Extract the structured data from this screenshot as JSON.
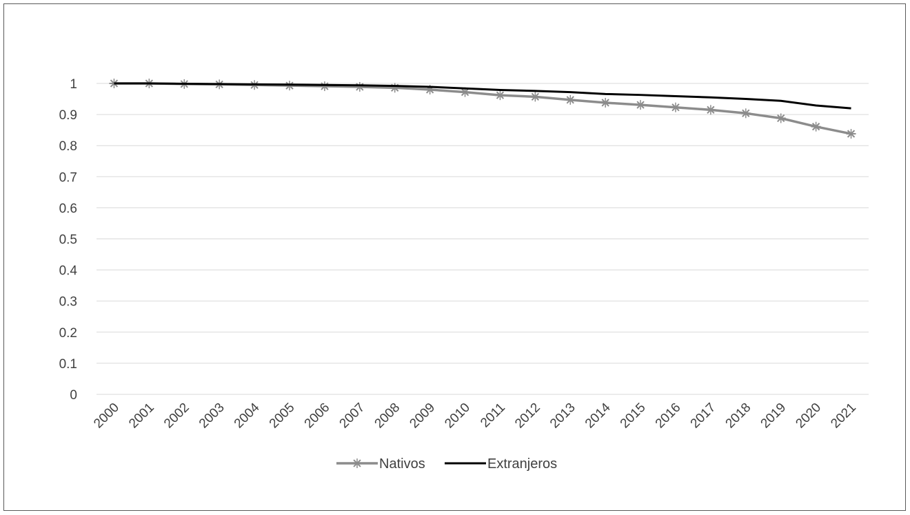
{
  "chart_data": {
    "type": "line",
    "title": "",
    "xlabel": "",
    "ylabel": "",
    "x": [
      "2000",
      "2001",
      "2002",
      "2003",
      "2004",
      "2005",
      "2006",
      "2007",
      "2008",
      "2009",
      "2010",
      "2011",
      "2012",
      "2013",
      "2014",
      "2015",
      "2016",
      "2017",
      "2018",
      "2019",
      "2020",
      "2021"
    ],
    "y_ticks": [
      "0",
      "0.1",
      "0.2",
      "0.3",
      "0.4",
      "0.5",
      "0.6",
      "0.7",
      "0.8",
      "0.9",
      "1"
    ],
    "ylim": [
      0,
      1
    ],
    "grid": true,
    "legend_position": "bottom",
    "series": [
      {
        "name": "Nativos",
        "color": "#8c8c8c",
        "marker": "asterisk",
        "values": [
          1.0,
          1.0,
          0.998,
          0.997,
          0.995,
          0.993,
          0.991,
          0.989,
          0.986,
          0.98,
          0.972,
          0.962,
          0.957,
          0.947,
          0.938,
          0.931,
          0.923,
          0.915,
          0.904,
          0.888,
          0.861,
          0.838
        ]
      },
      {
        "name": "Extranjeros",
        "color": "#000000",
        "marker": "none",
        "values": [
          1.0,
          1.0,
          0.999,
          0.998,
          0.997,
          0.996,
          0.995,
          0.994,
          0.992,
          0.989,
          0.984,
          0.979,
          0.976,
          0.972,
          0.966,
          0.963,
          0.959,
          0.955,
          0.95,
          0.944,
          0.929,
          0.92
        ]
      }
    ]
  }
}
